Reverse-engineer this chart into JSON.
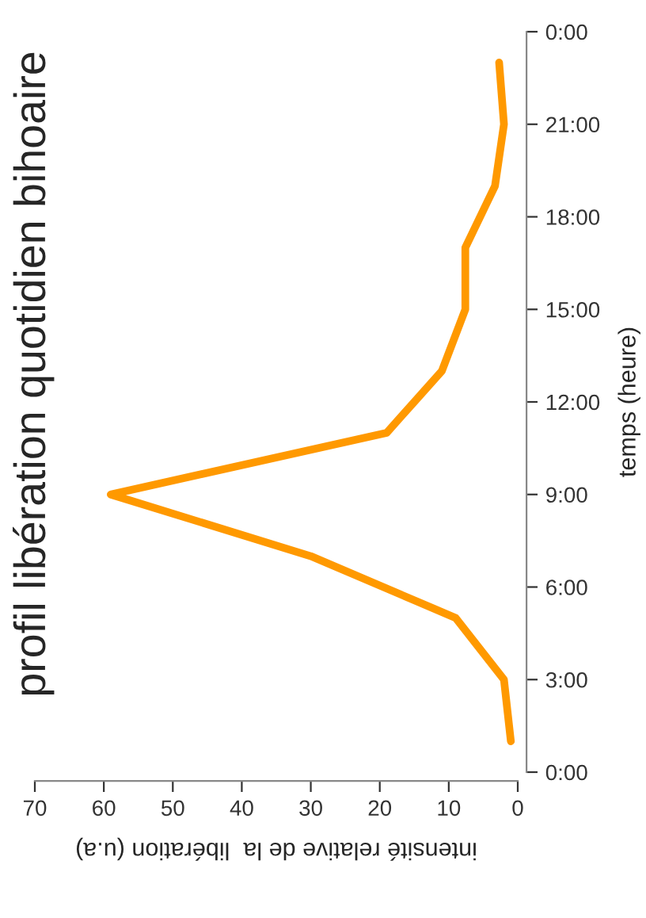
{
  "chart_data": {
    "type": "line",
    "orientation": "horizontal",
    "title": "profil libération quotidien bihoaire",
    "ylabel": "temps (heure)",
    "xlabel": "intensité relative de la  libération (u.a)",
    "x": [
      1,
      3,
      5,
      7,
      9,
      11,
      13,
      15,
      17,
      19,
      21,
      23
    ],
    "series": [
      {
        "color": "#ff9900",
        "values": [
          1,
          2,
          9,
          30,
          59,
          19,
          11,
          7.6,
          7.6,
          3.3,
          2,
          2.7
        ]
      }
    ],
    "ylim": [
      0,
      24
    ],
    "yticks": [
      {
        "value": 0,
        "label": "0:00"
      },
      {
        "value": 3,
        "label": "3:00"
      },
      {
        "value": 6,
        "label": "6:00"
      },
      {
        "value": 9,
        "label": "9:00"
      },
      {
        "value": 12,
        "label": "12:00"
      },
      {
        "value": 15,
        "label": "15:00"
      },
      {
        "value": 18,
        "label": "18:00"
      },
      {
        "value": 21,
        "label": "21:00"
      },
      {
        "value": 24,
        "label": "0:00"
      }
    ],
    "xlim": [
      70,
      0
    ],
    "xticks": [
      0,
      10,
      20,
      30,
      40,
      50,
      60,
      70
    ],
    "grid": false,
    "legend": false,
    "marker": "none",
    "line_style": "solid"
  }
}
